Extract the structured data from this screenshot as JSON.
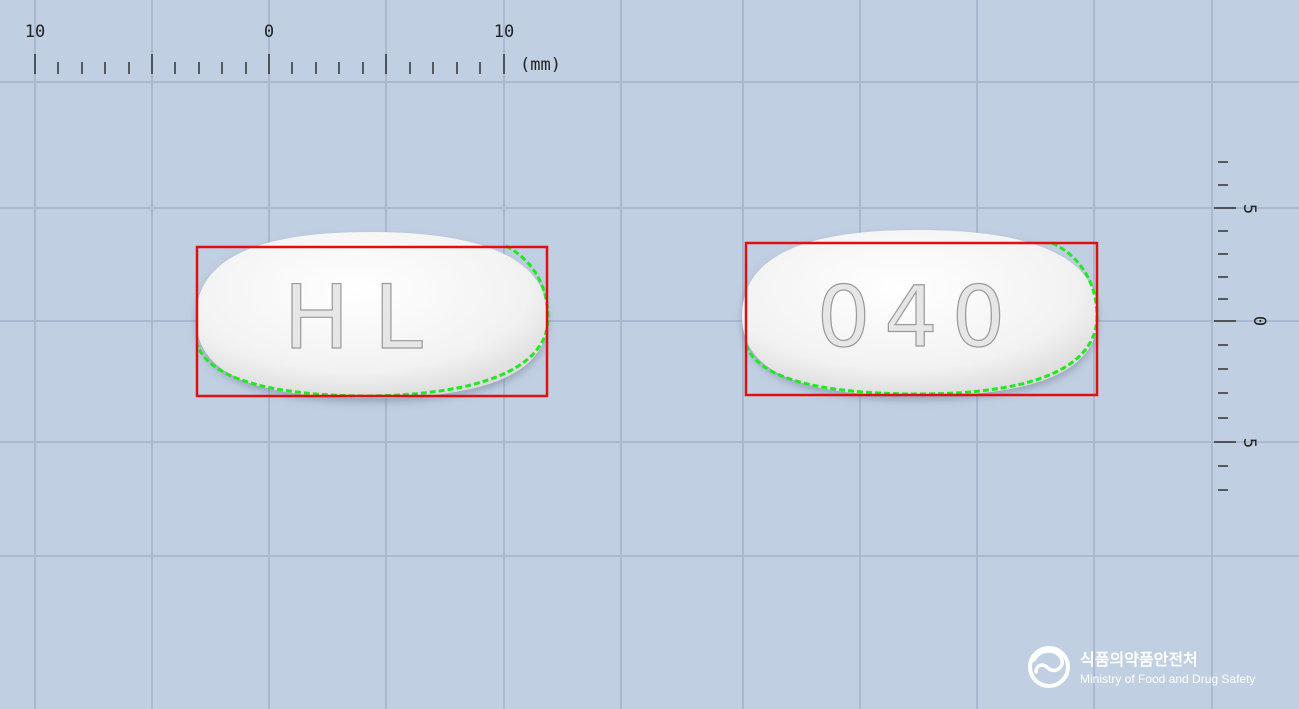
{
  "ruler_top": {
    "labels": [
      "10",
      "0",
      "10"
    ],
    "unit": "(mm)"
  },
  "ruler_right": {
    "labels": [
      "5",
      "0",
      "5"
    ]
  },
  "tablets": [
    {
      "imprint": "HL"
    },
    {
      "imprint": "040"
    }
  ],
  "logo": {
    "korean": "식품의약품안전처",
    "english": "Ministry of Food and Drug Safety"
  },
  "colors": {
    "background": "#c1cfe2",
    "grid": "#a9b9cf",
    "bbox": "#e01010",
    "contour": "#22e822",
    "tablet": "#f4f4f4"
  }
}
